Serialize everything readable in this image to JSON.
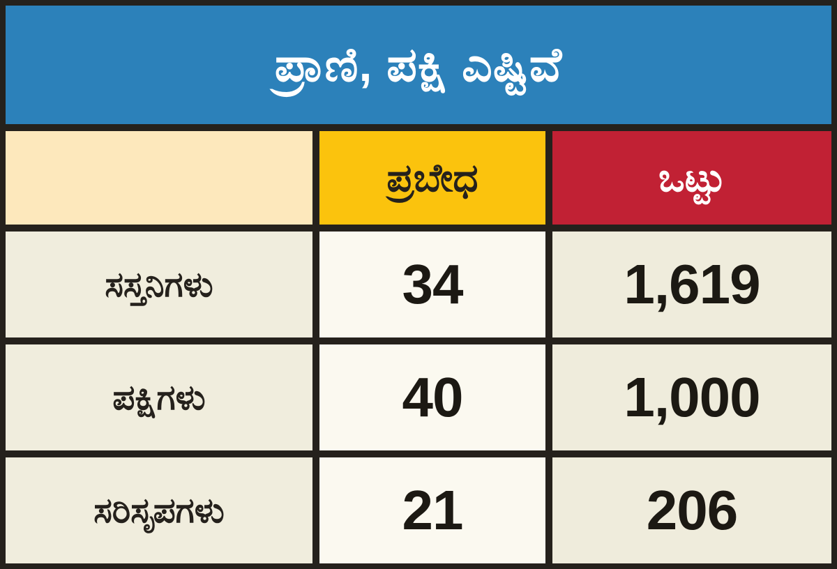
{
  "header": {
    "title": "ಪ್ರಾಣಿ, ಪಕ್ಷಿ ಎಷ್ಟಿವೆ"
  },
  "table": {
    "col_species_label": "ಪ್ರಬೇಧ",
    "col_total_label": "ಒಟ್ಟು",
    "rows": [
      {
        "label": "ಸಸ್ತನಿಗಳು",
        "species": "34",
        "total": "1,619"
      },
      {
        "label": "ಪಕ್ಷಿಗಳು",
        "species": "40",
        "total": "1,000"
      },
      {
        "label": "ಸರಿಸೃಪಗಳು",
        "species": "21",
        "total": "206"
      }
    ]
  },
  "colors": {
    "title_bg": "#2c81ba",
    "empty_header_bg": "#fde8bc",
    "species_header_bg": "#fbc30d",
    "total_header_bg": "#c12134",
    "label_cell_bg": "#f0eddd",
    "species_cell_bg": "#fbf9f0",
    "total_cell_bg": "#efecdc",
    "border": "#25211c",
    "text_dark": "#25211c",
    "text_light": "#ffffff"
  },
  "chart_data": {
    "type": "table",
    "title": "ಪ್ರಾಣಿ, ಪಕ್ಷಿ ಎಷ್ಟಿವೆ",
    "columns": [
      "",
      "ಪ್ರಬೇಧ",
      "ಒಟ್ಟು"
    ],
    "rows": [
      [
        "ಸಸ್ತನಿಗಳು",
        34,
        1619
      ],
      [
        "ಪಕ್ಷಿಗಳು",
        40,
        1000
      ],
      [
        "ಸರಿಸೃಪಗಳು",
        21,
        206
      ]
    ]
  }
}
